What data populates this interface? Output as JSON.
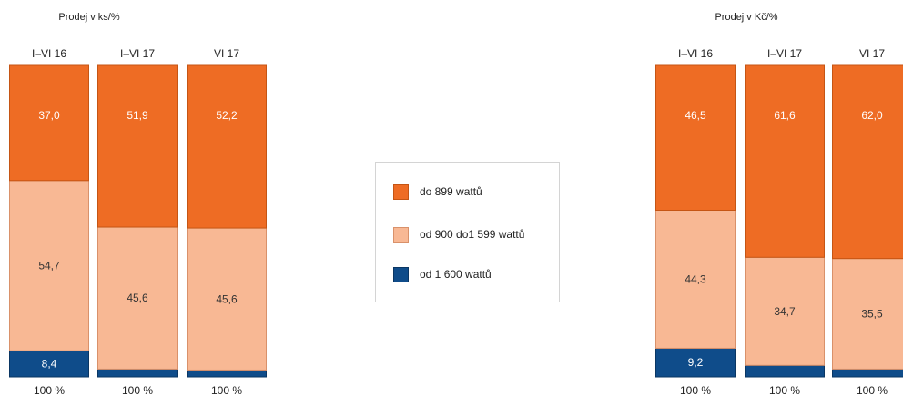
{
  "chart_data": [
    {
      "type": "bar",
      "stacked": true,
      "title": "Prodej v ks/%",
      "categories": [
        "I–VI 16",
        "I–VI 17",
        "VI 17"
      ],
      "totals_label": "100 %",
      "ylim": [
        0,
        100
      ],
      "series": [
        {
          "name": "od 1 600 wattů",
          "color": "#0f4c8a",
          "values": [
            8.4,
            2.5,
            2.2
          ],
          "labels": [
            "8,4",
            "",
            ""
          ]
        },
        {
          "name": "od 900 do1 599 wattů",
          "color": "#f8b894",
          "values": [
            54.7,
            45.6,
            45.6
          ],
          "labels": [
            "54,7",
            "45,6",
            "45,6"
          ]
        },
        {
          "name": "do 899 wattů",
          "color": "#ee6c24",
          "values": [
            37.0,
            51.9,
            52.2
          ],
          "labels": [
            "37,0",
            "51,9",
            "52,2"
          ]
        }
      ]
    },
    {
      "type": "bar",
      "stacked": true,
      "title": "Prodej v Kč/%",
      "categories": [
        "I–VI 16",
        "I–VI 17",
        "VI 17"
      ],
      "totals_label": "100 %",
      "ylim": [
        0,
        100
      ],
      "series": [
        {
          "name": "od 1 600 wattů",
          "color": "#0f4c8a",
          "values": [
            9.2,
            3.7,
            2.5
          ],
          "labels": [
            "9,2",
            "",
            ""
          ]
        },
        {
          "name": "od 900 do1 599 wattů",
          "color": "#f8b894",
          "values": [
            44.3,
            34.7,
            35.5
          ],
          "labels": [
            "44,3",
            "34,7",
            "35,5"
          ]
        },
        {
          "name": "do 899 wattů",
          "color": "#ee6c24",
          "values": [
            46.5,
            61.6,
            62.0
          ],
          "labels": [
            "46,5",
            "61,6",
            "62,0"
          ]
        }
      ]
    }
  ],
  "legend": {
    "items": [
      {
        "label": "do 899 wattů",
        "color": "#ee6c24"
      },
      {
        "label": "od 900 do1 599 wattů",
        "color": "#f8b894"
      },
      {
        "label": "od 1 600 wattů",
        "color": "#0f4c8a"
      }
    ]
  }
}
